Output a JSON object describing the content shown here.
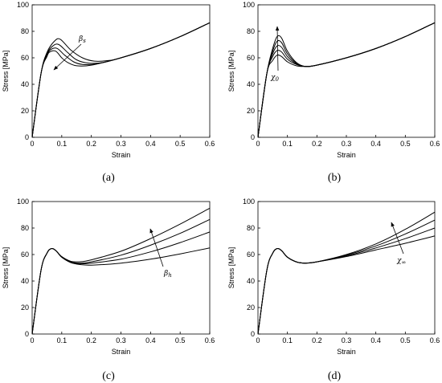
{
  "chart_data": [
    {
      "type": "line",
      "panel": "(a)",
      "xlabel": "Strain",
      "ylabel": "Stress [MPa]",
      "xlim": [
        0,
        0.6
      ],
      "ylim": [
        0,
        100
      ],
      "xticks": [
        "0",
        "0.1",
        "0.2",
        "0.3",
        "0.4",
        "0.5",
        "0.6"
      ],
      "yticks": [
        "0",
        "20",
        "40",
        "60",
        "80",
        "100"
      ],
      "annotation": "β_s",
      "arrow": "down-left",
      "grid": false,
      "series": [
        {
          "x": [
            0,
            0.03,
            0.05,
            0.06,
            0.08,
            0.1,
            0.12,
            0.15,
            0.2,
            0.3,
            0.4,
            0.5,
            0.6
          ],
          "y": [
            0,
            48,
            61,
            64.5,
            65,
            60,
            56.5,
            54,
            54.5,
            60,
            67,
            76,
            86.5
          ]
        },
        {
          "x": [
            0,
            0.03,
            0.05,
            0.065,
            0.085,
            0.11,
            0.14,
            0.17,
            0.22,
            0.3,
            0.4,
            0.5,
            0.6
          ],
          "y": [
            0,
            48,
            62,
            66.5,
            67,
            62,
            57,
            55,
            55.5,
            60,
            67,
            76,
            86.5
          ]
        },
        {
          "x": [
            0,
            0.03,
            0.05,
            0.07,
            0.09,
            0.12,
            0.15,
            0.19,
            0.24,
            0.3,
            0.4,
            0.5,
            0.6
          ],
          "y": [
            0,
            48,
            63,
            69,
            70,
            64,
            58.5,
            56,
            56.5,
            60,
            67,
            76,
            86.5
          ]
        },
        {
          "x": [
            0,
            0.03,
            0.05,
            0.075,
            0.095,
            0.13,
            0.17,
            0.21,
            0.26,
            0.3,
            0.4,
            0.5,
            0.6
          ],
          "y": [
            0,
            48,
            64,
            72.5,
            74,
            66,
            60,
            57.5,
            58,
            60,
            67,
            76,
            86.5
          ]
        }
      ]
    },
    {
      "type": "line",
      "panel": "(b)",
      "xlabel": "Strain",
      "ylabel": "Stress [MPa]",
      "xlim": [
        0,
        0.6
      ],
      "ylim": [
        0,
        100
      ],
      "xticks": [
        "0",
        "0.1",
        "0.2",
        "0.3",
        "0.4",
        "0.5",
        "0.6"
      ],
      "yticks": [
        "0",
        "20",
        "40",
        "60",
        "80",
        "100"
      ],
      "annotation": "χ_0",
      "arrow": "up",
      "grid": false,
      "series": [
        {
          "x": [
            0,
            0.03,
            0.05,
            0.065,
            0.08,
            0.1,
            0.13,
            0.16,
            0.2,
            0.3,
            0.4,
            0.5,
            0.6
          ],
          "y": [
            0,
            48,
            58,
            62,
            61,
            57,
            54,
            53.5,
            54.5,
            60,
            67,
            76,
            86.5
          ]
        },
        {
          "x": [
            0,
            0.03,
            0.05,
            0.065,
            0.08,
            0.1,
            0.13,
            0.16,
            0.2,
            0.3,
            0.4,
            0.5,
            0.6
          ],
          "y": [
            0,
            48,
            61,
            65.5,
            64.5,
            59,
            55,
            53.5,
            54.5,
            60,
            67,
            76,
            86.5
          ]
        },
        {
          "x": [
            0,
            0.03,
            0.05,
            0.065,
            0.08,
            0.1,
            0.13,
            0.16,
            0.2,
            0.3,
            0.4,
            0.5,
            0.6
          ],
          "y": [
            0,
            48,
            63,
            69,
            68,
            61,
            55.5,
            53.5,
            54.5,
            60,
            67,
            76,
            86.5
          ]
        },
        {
          "x": [
            0,
            0.03,
            0.05,
            0.065,
            0.08,
            0.1,
            0.13,
            0.16,
            0.2,
            0.3,
            0.4,
            0.5,
            0.6
          ],
          "y": [
            0,
            48,
            65,
            72.5,
            71.5,
            63,
            56,
            53.5,
            54.5,
            60,
            67,
            76,
            86.5
          ]
        },
        {
          "x": [
            0,
            0.03,
            0.05,
            0.065,
            0.08,
            0.1,
            0.13,
            0.16,
            0.2,
            0.3,
            0.4,
            0.5,
            0.6
          ],
          "y": [
            0,
            48,
            67,
            76,
            75,
            65,
            56.5,
            53.5,
            54.5,
            60,
            67,
            76,
            86.5
          ]
        }
      ]
    },
    {
      "type": "line",
      "panel": "(c)",
      "xlabel": "Strain",
      "ylabel": "Stress [MPa]",
      "xlim": [
        0,
        0.6
      ],
      "ylim": [
        0,
        100
      ],
      "xticks": [
        "0",
        "0.1",
        "0.2",
        "0.3",
        "0.4",
        "0.5",
        "0.6"
      ],
      "yticks": [
        "0",
        "20",
        "40",
        "60",
        "80",
        "100"
      ],
      "annotation": "β_h",
      "arrow": "up",
      "grid": false,
      "series": [
        {
          "x": [
            0,
            0.03,
            0.05,
            0.065,
            0.08,
            0.1,
            0.13,
            0.16,
            0.2,
            0.3,
            0.4,
            0.5,
            0.6
          ],
          "y": [
            0,
            48,
            61,
            64.5,
            63,
            58,
            54,
            52.5,
            52,
            53.5,
            56.5,
            60.5,
            65
          ]
        },
        {
          "x": [
            0,
            0.03,
            0.05,
            0.065,
            0.08,
            0.1,
            0.13,
            0.16,
            0.2,
            0.3,
            0.4,
            0.5,
            0.6
          ],
          "y": [
            0,
            48,
            61,
            64.5,
            63,
            58,
            54,
            53,
            53.5,
            56.5,
            62,
            69,
            77
          ]
        },
        {
          "x": [
            0,
            0.03,
            0.05,
            0.065,
            0.08,
            0.1,
            0.13,
            0.16,
            0.2,
            0.3,
            0.4,
            0.5,
            0.6
          ],
          "y": [
            0,
            48,
            61,
            64.5,
            63,
            58,
            54.5,
            53.5,
            54.5,
            59.5,
            67,
            76,
            86.5
          ]
        },
        {
          "x": [
            0,
            0.03,
            0.05,
            0.065,
            0.08,
            0.1,
            0.13,
            0.16,
            0.2,
            0.3,
            0.4,
            0.5,
            0.6
          ],
          "y": [
            0,
            48,
            61,
            64.5,
            63,
            58.5,
            55,
            54.5,
            56,
            62.5,
            72,
            83,
            95
          ]
        }
      ]
    },
    {
      "type": "line",
      "panel": "(d)",
      "xlabel": "Strain",
      "ylabel": "Stress [MPa]",
      "xlim": [
        0,
        0.6
      ],
      "ylim": [
        0,
        100
      ],
      "xticks": [
        "0",
        "0.1",
        "0.2",
        "0.3",
        "0.4",
        "0.5",
        "0.6"
      ],
      "yticks": [
        "0",
        "20",
        "40",
        "60",
        "80",
        "100"
      ],
      "annotation": "χ_∞",
      "arrow": "up-right",
      "grid": false,
      "series": [
        {
          "x": [
            0,
            0.03,
            0.05,
            0.065,
            0.08,
            0.1,
            0.13,
            0.16,
            0.2,
            0.3,
            0.4,
            0.5,
            0.6
          ],
          "y": [
            0,
            48,
            61,
            64.5,
            63,
            58,
            54.5,
            53.5,
            54.5,
            58.5,
            63.5,
            68.5,
            74
          ]
        },
        {
          "x": [
            0,
            0.03,
            0.05,
            0.065,
            0.08,
            0.1,
            0.13,
            0.16,
            0.2,
            0.3,
            0.4,
            0.5,
            0.6
          ],
          "y": [
            0,
            48,
            61,
            64.5,
            63,
            58,
            54.5,
            53.5,
            54.5,
            59,
            65,
            72,
            80
          ]
        },
        {
          "x": [
            0,
            0.03,
            0.05,
            0.065,
            0.08,
            0.1,
            0.13,
            0.16,
            0.2,
            0.3,
            0.4,
            0.5,
            0.6
          ],
          "y": [
            0,
            48,
            61,
            64.5,
            63,
            58,
            54.5,
            53.5,
            54.5,
            59.5,
            66.5,
            75.5,
            86
          ]
        },
        {
          "x": [
            0,
            0.03,
            0.05,
            0.065,
            0.08,
            0.1,
            0.13,
            0.16,
            0.2,
            0.3,
            0.4,
            0.5,
            0.6
          ],
          "y": [
            0,
            48,
            61,
            64.5,
            63,
            58,
            54.5,
            53.5,
            54.5,
            60,
            68,
            79,
            92
          ]
        }
      ]
    }
  ]
}
